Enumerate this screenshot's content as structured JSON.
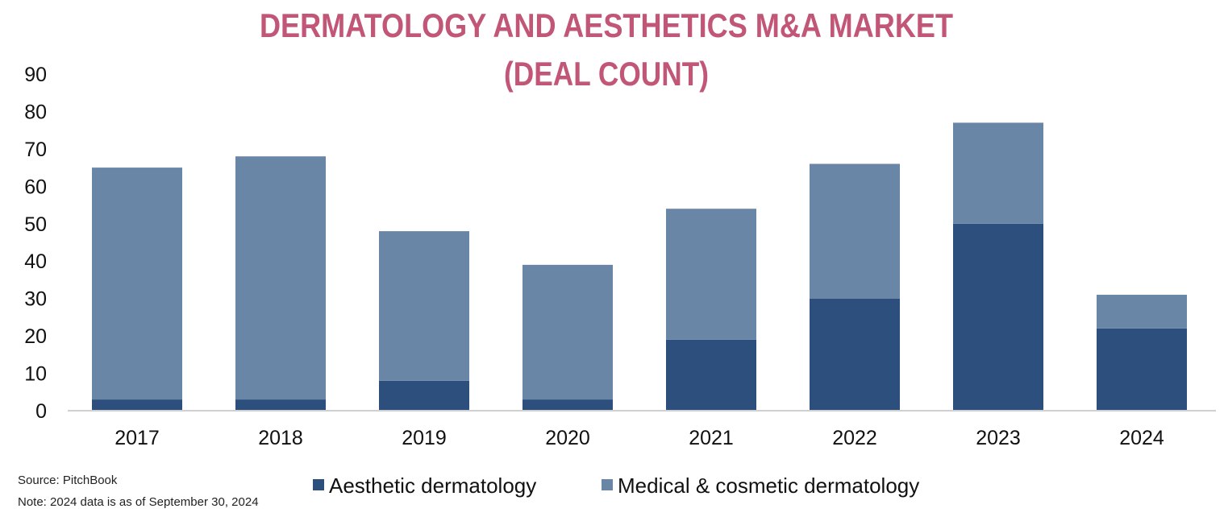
{
  "chart_data": {
    "type": "bar",
    "stacked": true,
    "title": "DERMATOLOGY AND AESTHETICS M&A MARKET",
    "subtitle": "(DEAL COUNT)",
    "categories": [
      "2017",
      "2018",
      "2019",
      "2020",
      "2021",
      "2022",
      "2023",
      "2024"
    ],
    "series": [
      {
        "name": "Aesthetic dermatology",
        "color": "#2c4f7e",
        "values": [
          3,
          3,
          8,
          3,
          19,
          30,
          50,
          22
        ]
      },
      {
        "name": "Medical & cosmetic dermatology",
        "color": "#6a86a6",
        "values": [
          62,
          65,
          40,
          36,
          35,
          36,
          27,
          9
        ]
      }
    ],
    "ylim": [
      0,
      90
    ],
    "yticks": [
      "0",
      "10",
      "20",
      "30",
      "40",
      "50",
      "60",
      "70",
      "80",
      "90"
    ],
    "grid": false,
    "legend_position": "bottom"
  },
  "footnotes": {
    "source": "Source: PitchBook",
    "note": "Note: 2024 data is as of September 30, 2024"
  }
}
